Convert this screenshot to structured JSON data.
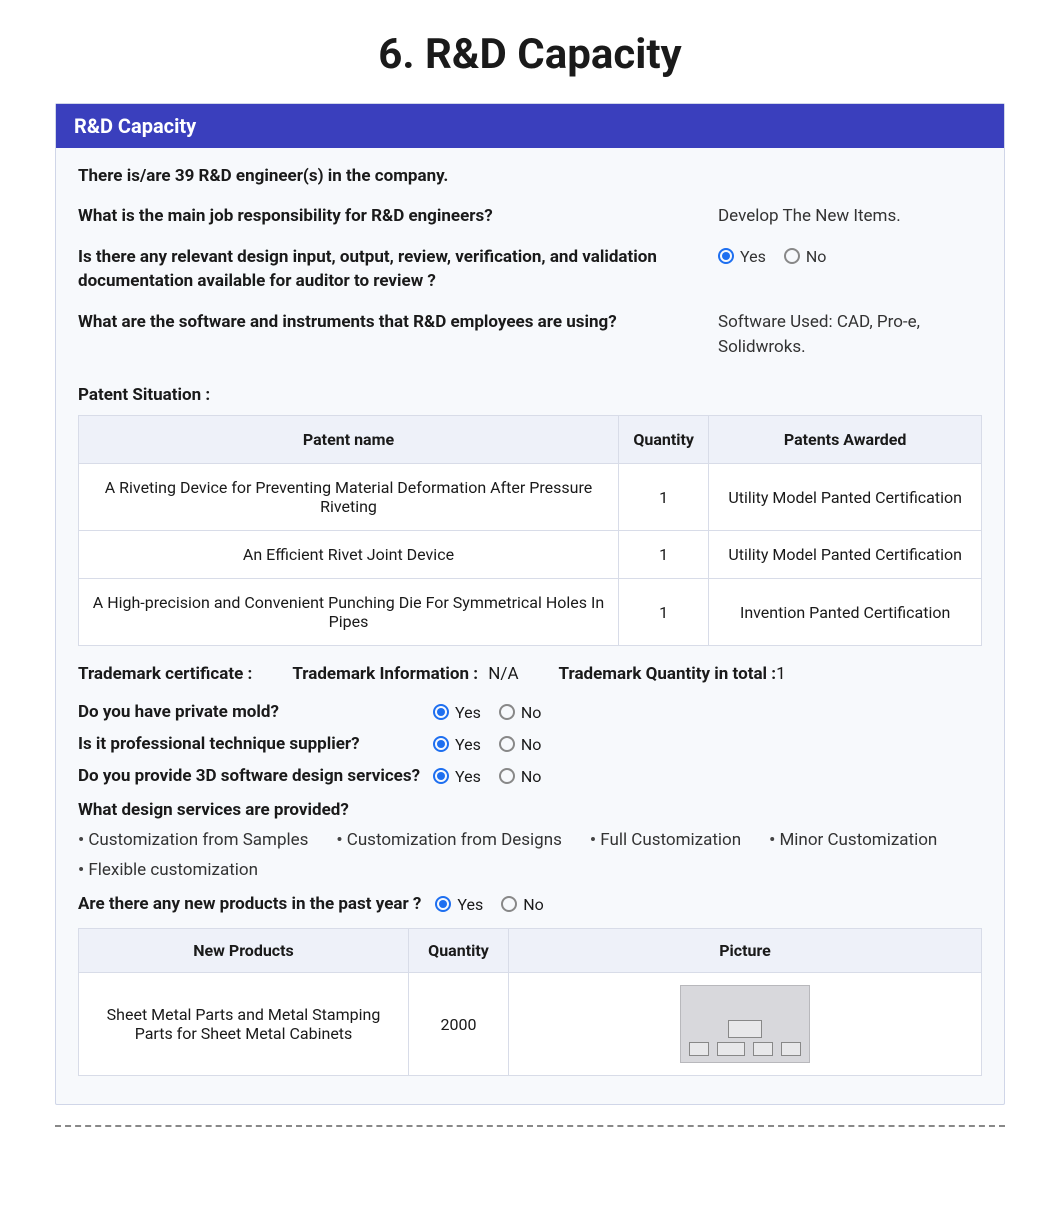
{
  "title": "6. R&D Capacity",
  "header": "R&D Capacity",
  "intro": "There is/are 39 R&D engineer(s) in the company.",
  "qa": [
    {
      "q": "What is the main job responsibility for R&D engineers?",
      "a_type": "text",
      "a": "Develop The New Items."
    },
    {
      "q": "Is there any relevant design input, output, review, verification, and validation documentation available for auditor to review ?",
      "a_type": "radio",
      "selected": "Yes",
      "options": [
        "Yes",
        "No"
      ]
    },
    {
      "q": "What are the software and instruments that R&D employees are using?",
      "a_type": "text",
      "a": "Software Used: CAD, Pro-e, Solidwroks."
    }
  ],
  "patent_section_label": "Patent Situation :",
  "patent_columns": [
    "Patent name",
    "Quantity",
    "Patents Awarded"
  ],
  "patents": [
    {
      "name": "A Riveting Device for Preventing Material Deformation After Pressure Riveting",
      "qty": "1",
      "award": "Utility Model Panted Certification"
    },
    {
      "name": "An Efficient Rivet Joint Device",
      "qty": "1",
      "award": "Utility Model Panted Certification"
    },
    {
      "name": "A High-precision and Convenient Punching Die For Symmetrical Holes In Pipes",
      "qty": "1",
      "award": "Invention Panted Certification"
    }
  ],
  "trademark": {
    "cert_label": "Trademark certificate :",
    "info_label": "Trademark Information :",
    "info_value": "N/A",
    "qty_label": "Trademark Quantity in total :",
    "qty_value": "1"
  },
  "yn_questions": [
    {
      "q": "Do you have private mold?",
      "selected": "Yes",
      "options": [
        "Yes",
        "No"
      ]
    },
    {
      "q": "Is it professional technique supplier?",
      "selected": "Yes",
      "options": [
        "Yes",
        "No"
      ]
    },
    {
      "q": "Do you provide 3D software design services?",
      "selected": "Yes",
      "options": [
        "Yes",
        "No"
      ]
    }
  ],
  "design_services_q": "What design services are provided?",
  "design_services": [
    "Customization from Samples",
    "Customization from Designs",
    "Full Customization",
    "Minor Customization",
    "Flexible customization"
  ],
  "new_products_q": {
    "q": "Are there any new products in the past year ?",
    "selected": "Yes",
    "options": [
      "Yes",
      "No"
    ]
  },
  "product_columns": [
    "New Products",
    "Quantity",
    "Picture"
  ],
  "products": [
    {
      "name": "Sheet Metal Parts and Metal Stamping Parts for Sheet Metal Cabinets",
      "qty": "2000"
    }
  ],
  "colors": {
    "header_bg": "#3a3fbd",
    "card_bg": "#f7f9fc",
    "table_header_bg": "#eef1f9",
    "border": "#d8dce8",
    "radio_selected": "#1e6ff0"
  }
}
